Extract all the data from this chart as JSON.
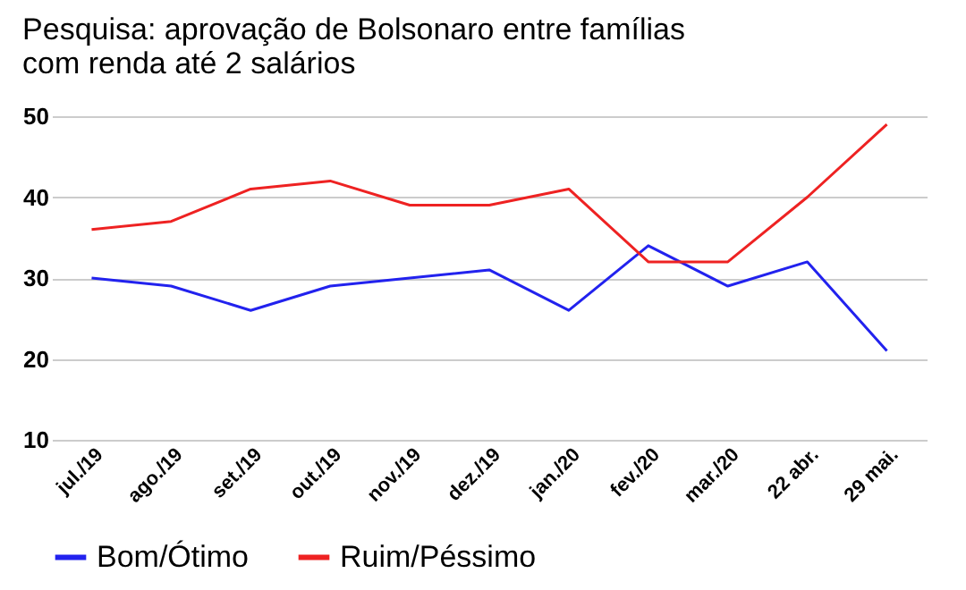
{
  "chart_data": {
    "type": "line",
    "title": [
      "Pesquisa: aprovação de Bolsonaro entre famílias",
      "com renda até 2 salários"
    ],
    "categories": [
      "jul./19",
      "ago./19",
      "set./19",
      "out./19",
      "nov./19",
      "dez./19",
      "jan./20",
      "fev./20",
      "mar./20",
      "22 abr.",
      "29 mai."
    ],
    "series": [
      {
        "name": "Bom/Ótimo",
        "color": "#2222ee",
        "values": [
          30,
          29,
          26,
          29,
          30,
          31,
          26,
          34,
          29,
          32,
          21
        ]
      },
      {
        "name": "Ruim/Péssimo",
        "color": "#ee2222",
        "values": [
          36,
          37,
          41,
          42,
          39,
          39,
          41,
          32,
          32,
          40,
          49
        ]
      }
    ],
    "ylim": [
      10,
      50
    ],
    "yticks": [
      10,
      20,
      30,
      40,
      50
    ],
    "grid": "y",
    "legend": "bottom",
    "marker": "none",
    "line_style": "solid"
  }
}
